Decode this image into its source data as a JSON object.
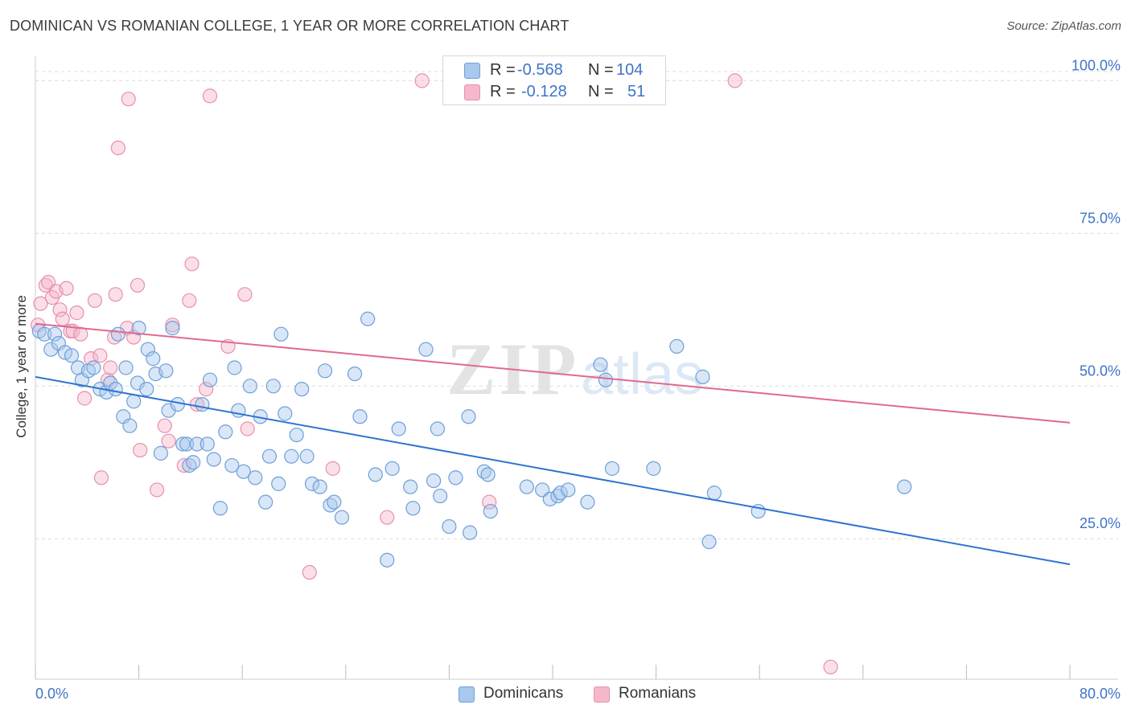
{
  "title": "DOMINICAN VS ROMANIAN COLLEGE, 1 YEAR OR MORE CORRELATION CHART",
  "source": "Source: ZipAtlas.com",
  "colors": {
    "blue_fill": "#a9c8ee",
    "blue_stroke": "#6f9fd8",
    "blue_line": "#2f74d0",
    "pink_fill": "#f5b8cb",
    "pink_stroke": "#e890ac",
    "pink_line": "#e2688f",
    "axis_text": "#3f74c8",
    "grid": "#dcdcdc"
  },
  "legend": {
    "rows": [
      {
        "r_label": "R =",
        "r_value": "-0.568",
        "n_label": "N =",
        "n_value": "104"
      },
      {
        "r_label": "R =",
        "r_value": "-0.128",
        "n_label": "N =",
        "n_value": "51"
      }
    ],
    "bottom": [
      "Dominicans",
      "Romanians"
    ]
  },
  "watermark": {
    "zip": "ZIP",
    "atlas": "atlas"
  },
  "chart_data": {
    "type": "scatter",
    "title": "DOMINICAN VS ROMANIAN COLLEGE, 1 YEAR OR MORE CORRELATION CHART",
    "xlabel": "",
    "ylabel": "College, 1 year or more",
    "xlim": [
      0,
      80
    ],
    "ylim": [
      2,
      104
    ],
    "x_tick_labels": [
      "0.0%",
      "80.0%"
    ],
    "y_ticks": [
      25,
      50,
      75,
      100
    ],
    "y_tick_labels": [
      "25.0%",
      "50.0%",
      "75.0%",
      "100.0%"
    ],
    "grid": true,
    "legend_position": "top-center",
    "series": [
      {
        "name": "Dominicans",
        "color": "#a9c8ee",
        "trend": {
          "x": [
            0,
            80
          ],
          "y": [
            51.5,
            20.8
          ]
        },
        "points": [
          [
            0.3,
            59.0
          ],
          [
            0.7,
            58.5
          ],
          [
            1.2,
            56.0
          ],
          [
            1.5,
            58.5
          ],
          [
            1.8,
            57.0
          ],
          [
            2.3,
            55.5
          ],
          [
            2.8,
            55.0
          ],
          [
            3.3,
            53.0
          ],
          [
            3.6,
            51.0
          ],
          [
            4.1,
            52.5
          ],
          [
            4.5,
            53.0
          ],
          [
            5.0,
            49.5
          ],
          [
            5.5,
            49.0
          ],
          [
            5.8,
            50.5
          ],
          [
            6.2,
            49.5
          ],
          [
            6.4,
            58.5
          ],
          [
            6.8,
            45.0
          ],
          [
            7.0,
            53.0
          ],
          [
            7.3,
            43.5
          ],
          [
            7.6,
            47.5
          ],
          [
            7.9,
            50.5
          ],
          [
            8.0,
            59.5
          ],
          [
            8.6,
            49.5
          ],
          [
            8.7,
            56.0
          ],
          [
            9.1,
            54.5
          ],
          [
            9.3,
            52.0
          ],
          [
            9.7,
            39.0
          ],
          [
            10.1,
            52.5
          ],
          [
            10.3,
            46.0
          ],
          [
            10.6,
            59.5
          ],
          [
            11.0,
            47.0
          ],
          [
            11.4,
            40.5
          ],
          [
            11.7,
            40.5
          ],
          [
            11.9,
            37.0
          ],
          [
            12.2,
            37.5
          ],
          [
            12.5,
            40.5
          ],
          [
            12.9,
            47.0
          ],
          [
            13.3,
            40.5
          ],
          [
            13.5,
            51.0
          ],
          [
            13.8,
            38.0
          ],
          [
            14.3,
            30.0
          ],
          [
            14.7,
            42.5
          ],
          [
            15.2,
            37.0
          ],
          [
            15.4,
            53.0
          ],
          [
            15.7,
            46.0
          ],
          [
            16.1,
            36.0
          ],
          [
            16.6,
            50.0
          ],
          [
            17.0,
            35.0
          ],
          [
            17.4,
            45.0
          ],
          [
            17.8,
            31.0
          ],
          [
            18.1,
            38.5
          ],
          [
            18.4,
            50.0
          ],
          [
            18.8,
            34.0
          ],
          [
            19.0,
            58.5
          ],
          [
            19.3,
            45.5
          ],
          [
            19.8,
            38.5
          ],
          [
            20.2,
            42.0
          ],
          [
            20.6,
            49.5
          ],
          [
            21.0,
            38.5
          ],
          [
            21.4,
            34.0
          ],
          [
            22.0,
            33.5
          ],
          [
            22.4,
            52.5
          ],
          [
            22.8,
            30.5
          ],
          [
            23.1,
            31.0
          ],
          [
            23.7,
            28.5
          ],
          [
            24.7,
            52.0
          ],
          [
            25.1,
            45.0
          ],
          [
            25.7,
            61.0
          ],
          [
            26.3,
            35.5
          ],
          [
            27.2,
            21.5
          ],
          [
            27.6,
            36.5
          ],
          [
            28.1,
            43.0
          ],
          [
            29.0,
            33.5
          ],
          [
            29.2,
            30.0
          ],
          [
            30.2,
            56.0
          ],
          [
            30.8,
            34.5
          ],
          [
            31.1,
            43.0
          ],
          [
            31.3,
            32.0
          ],
          [
            32.0,
            27.0
          ],
          [
            32.5,
            35.0
          ],
          [
            33.5,
            45.0
          ],
          [
            33.6,
            26.0
          ],
          [
            34.7,
            36.0
          ],
          [
            35.0,
            35.5
          ],
          [
            35.2,
            29.5
          ],
          [
            38.0,
            33.5
          ],
          [
            39.2,
            33.0
          ],
          [
            39.8,
            31.5
          ],
          [
            40.4,
            32.0
          ],
          [
            40.6,
            32.5
          ],
          [
            41.2,
            33.0
          ],
          [
            42.7,
            31.0
          ],
          [
            43.7,
            53.5
          ],
          [
            44.1,
            51.0
          ],
          [
            44.6,
            36.5
          ],
          [
            47.8,
            36.5
          ],
          [
            49.6,
            56.5
          ],
          [
            51.6,
            51.5
          ],
          [
            52.1,
            24.5
          ],
          [
            52.5,
            32.5
          ],
          [
            55.9,
            29.5
          ],
          [
            67.2,
            33.5
          ]
        ]
      },
      {
        "name": "Romanians",
        "color": "#f5b8cb",
        "trend": {
          "x": [
            0,
            80
          ],
          "y": [
            60.2,
            44.0
          ]
        },
        "points": [
          [
            0.2,
            60.0
          ],
          [
            0.4,
            63.5
          ],
          [
            0.8,
            66.5
          ],
          [
            1.0,
            67.0
          ],
          [
            1.3,
            64.5
          ],
          [
            1.6,
            65.5
          ],
          [
            1.9,
            62.5
          ],
          [
            2.1,
            61.0
          ],
          [
            2.4,
            66.0
          ],
          [
            2.7,
            59.0
          ],
          [
            2.9,
            59.0
          ],
          [
            3.2,
            62.0
          ],
          [
            3.5,
            58.5
          ],
          [
            3.8,
            48.0
          ],
          [
            4.3,
            54.5
          ],
          [
            4.6,
            64.0
          ],
          [
            5.0,
            55.0
          ],
          [
            5.1,
            35.0
          ],
          [
            5.6,
            51.0
          ],
          [
            5.8,
            53.0
          ],
          [
            6.1,
            58.0
          ],
          [
            6.2,
            65.0
          ],
          [
            6.4,
            89.0
          ],
          [
            7.1,
            59.5
          ],
          [
            7.2,
            97.0
          ],
          [
            7.6,
            58.0
          ],
          [
            7.9,
            66.5
          ],
          [
            8.1,
            39.5
          ],
          [
            9.4,
            33.0
          ],
          [
            10.0,
            43.5
          ],
          [
            10.3,
            41.0
          ],
          [
            10.6,
            60.0
          ],
          [
            11.5,
            37.0
          ],
          [
            11.9,
            64.0
          ],
          [
            12.1,
            70.0
          ],
          [
            12.5,
            47.0
          ],
          [
            13.2,
            49.5
          ],
          [
            13.5,
            97.5
          ],
          [
            14.9,
            56.5
          ],
          [
            16.2,
            65.0
          ],
          [
            16.4,
            43.0
          ],
          [
            21.2,
            19.5
          ],
          [
            23.0,
            36.5
          ],
          [
            27.2,
            28.5
          ],
          [
            29.9,
            100.0
          ],
          [
            35.1,
            31.0
          ],
          [
            54.1,
            100.0
          ],
          [
            61.5,
            4.0
          ]
        ]
      }
    ]
  }
}
